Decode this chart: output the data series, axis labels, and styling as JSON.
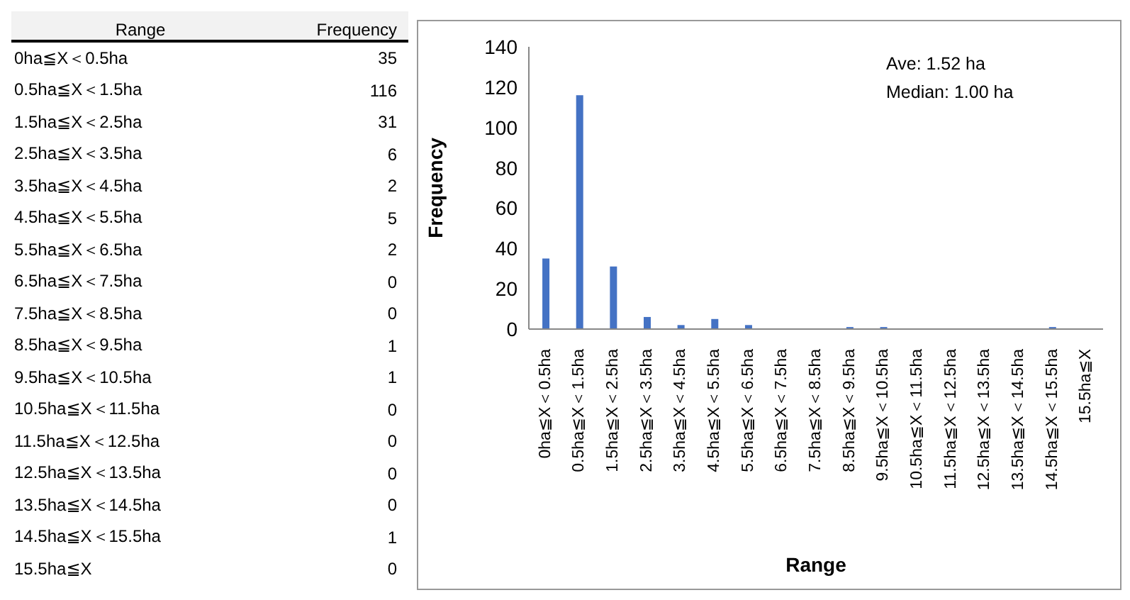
{
  "chart_data": [
    {
      "type": "other",
      "xlabel": "Range",
      "ylabel": "Frequency",
      "categories": [
        "0ha≦X＜0.5ha",
        "0.5ha≦X＜1.5ha",
        "1.5ha≦X＜2.5ha",
        "2.5ha≦X＜3.5ha",
        "3.5ha≦X＜4.5ha",
        "4.5ha≦X＜5.5ha",
        "5.5ha≦X＜6.5ha",
        "6.5ha≦X＜7.5ha",
        "7.5ha≦X＜8.5ha",
        "8.5ha≦X＜9.5ha",
        "9.5ha≦X＜10.5ha",
        "10.5ha≦X＜11.5ha",
        "11.5ha≦X＜12.5ha",
        "12.5ha≦X＜13.5ha",
        "13.5ha≦X＜14.5ha",
        "14.5ha≦X＜15.5ha",
        "15.5ha≦X"
      ],
      "values": [
        35,
        116,
        31,
        6,
        2,
        5,
        2,
        0,
        0,
        1,
        1,
        0,
        0,
        0,
        0,
        1,
        0
      ],
      "data_labels": true
    },
    {
      "type": "bar",
      "xlabel": "Range",
      "ylabel": "Frequency",
      "categories": [
        "0ha≦X＜0.5ha",
        "0.5ha≦X＜1.5ha",
        "1.5ha≦X＜2.5ha",
        "2.5ha≦X＜3.5ha",
        "3.5ha≦X＜4.5ha",
        "4.5ha≦X＜5.5ha",
        "5.5ha≦X＜6.5ha",
        "6.5ha≦X＜7.5ha",
        "7.5ha≦X＜8.5ha",
        "8.5ha≦X＜9.5ha",
        "9.5ha≦X＜10.5ha",
        "10.5ha≦X＜11.5ha",
        "11.5ha≦X＜12.5ha",
        "12.5ha≦X＜13.5ha",
        "13.5ha≦X＜14.5ha",
        "14.5ha≦X＜15.5ha",
        "15.5ha≦X"
      ],
      "values": [
        35,
        116,
        31,
        6,
        2,
        5,
        2,
        0,
        0,
        1,
        1,
        0,
        0,
        0,
        0,
        1,
        0
      ],
      "color": "#4472c4",
      "grid": false,
      "legend": false,
      "ylim": [
        0,
        140
      ],
      "yticks": [
        0,
        20,
        40,
        60,
        80,
        100,
        120,
        140
      ],
      "annotations": [
        "Ave: 1.52 ha",
        "Median: 1.00 ha"
      ]
    }
  ]
}
